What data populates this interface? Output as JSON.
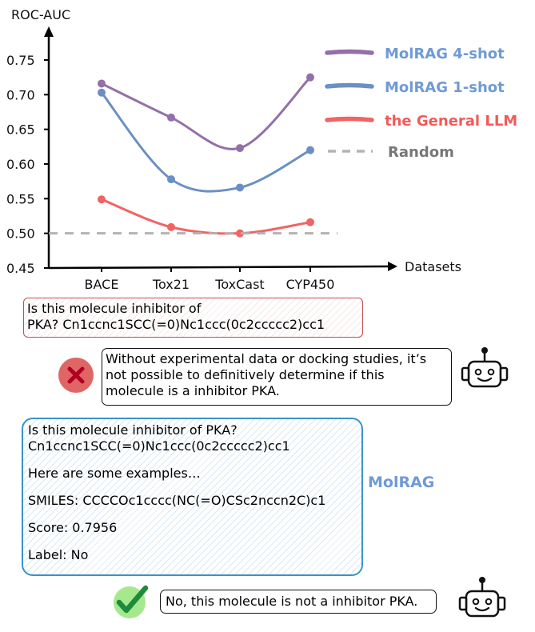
{
  "chart_data": {
    "type": "line",
    "title": "",
    "xlabel": "Datasets",
    "ylabel": "ROC-AUC",
    "categories": [
      "BACE",
      "Tox21",
      "ToxCast",
      "CYP450"
    ],
    "ylim": [
      0.45,
      0.78
    ],
    "yticks": [
      "0.75",
      "0.70",
      "0.65",
      "0.60",
      "0.55",
      "0.50",
      "0.45"
    ],
    "grid": false,
    "legend_position": "upper right (outside plot)",
    "series": [
      {
        "name": "MolRAG 4-shot",
        "color": "#9370a8",
        "values": [
          0.716,
          0.667,
          0.623,
          0.725
        ]
      },
      {
        "name": "MolRAG 1-shot",
        "color": "#6b8fc4",
        "values": [
          0.703,
          0.578,
          0.566,
          0.62
        ]
      },
      {
        "name": "the General LLM",
        "color": "#f26363",
        "values": [
          0.549,
          0.509,
          0.5,
          0.516
        ]
      },
      {
        "name": "Random",
        "color": "#b3b3b3",
        "style": "dashed",
        "values": [
          0.5,
          0.5,
          0.5,
          0.5
        ]
      }
    ]
  },
  "legend": {
    "items": [
      {
        "label": "MolRAG 4-shot",
        "text_color": "#6f9ad6",
        "swatch_color": "#9370a8"
      },
      {
        "label": "MolRAG 1-shot",
        "text_color": "#6f9ad6",
        "swatch_color": "#6b8fc4"
      },
      {
        "label": "the General LLM",
        "text_color": "#f25a5a",
        "swatch_color": "#f26363"
      },
      {
        "label": "Random",
        "text_color": "#777777",
        "swatch_color": "#b3b3b3"
      }
    ]
  },
  "general_query": {
    "lines": [
      "Is this molecule inhibitor of",
      "PKA? Cn1ccnc1SCC(=0)Nc1ccc(0c2ccccc2)cc1"
    ]
  },
  "general_answer": {
    "lines": [
      "Without experimental data or docking studies, it’s",
      "not possible to definitively determine if this",
      "molecule is a inhibitor PKA."
    ],
    "status_icon": "cross-icon",
    "status_color": "#e06666"
  },
  "molrag_query": {
    "label": "MolRAG",
    "question_lines": [
      "Is this molecule inhibitor of PKA?",
      "Cn1ccnc1SCC(=0)Nc1ccc(0c2ccccc2)cc1"
    ],
    "examples_intro": "Here are some examples…",
    "smiles": "SMILES: CCCCOc1cccc(NC(=O)CSc2nccn2C)c1",
    "score": "Score: 0.7956",
    "label_line": "Label: No"
  },
  "molrag_answer": {
    "text": "No, this molecule is not a inhibitor PKA.",
    "status_icon": "check-icon",
    "status_color": "#1e8a3c"
  }
}
